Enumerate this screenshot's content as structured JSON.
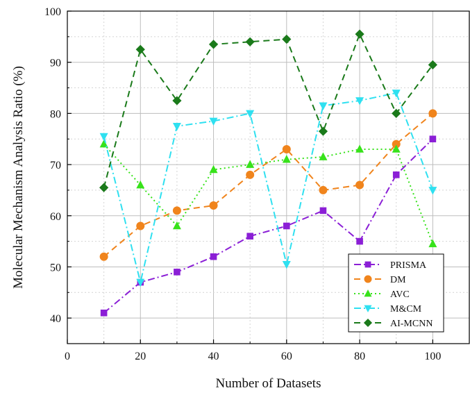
{
  "chart_data": {
    "type": "line",
    "xlabel": "Number of Datasets",
    "ylabel": "Molecular Mechanism Analysis Ratio (%)",
    "xlim": [
      0,
      110
    ],
    "ylim": [
      35,
      100
    ],
    "xticks": [
      0,
      20,
      40,
      60,
      80,
      100
    ],
    "yticks": [
      40,
      50,
      60,
      70,
      80,
      90,
      100
    ],
    "xtick_labels": [
      "0",
      "20",
      "40",
      "60",
      "80",
      "100"
    ],
    "ytick_labels": [
      "40",
      "50",
      "60",
      "70",
      "80",
      "90",
      "100"
    ],
    "grid": true,
    "legend_position": "bottom-right",
    "x": [
      10,
      20,
      30,
      40,
      50,
      60,
      70,
      80,
      90,
      100
    ],
    "series": [
      {
        "name": "PRISMA",
        "color": "#8b1fd6",
        "marker": "square",
        "dash": "dashdot",
        "values": [
          41,
          47,
          49,
          52,
          56,
          58,
          61,
          55,
          68,
          75
        ]
      },
      {
        "name": "DM",
        "color": "#f0841c",
        "marker": "circle",
        "dash": "dash",
        "values": [
          52,
          58,
          61,
          62,
          68,
          73,
          65,
          66,
          74,
          80
        ]
      },
      {
        "name": "AVC",
        "color": "#37e21a",
        "marker": "triangle-up",
        "dash": "dot",
        "values": [
          74,
          66,
          58,
          69,
          70,
          71,
          71.5,
          73,
          73,
          54.5
        ]
      },
      {
        "name": "M&CM",
        "color": "#2fe0f0",
        "marker": "triangle-down",
        "dash": "dashdot",
        "values": [
          75.5,
          47,
          77.5,
          78.5,
          80,
          50.5,
          81.5,
          82.5,
          84,
          65
        ]
      },
      {
        "name": "AI-MCNN",
        "color": "#1a7a1a",
        "marker": "diamond",
        "dash": "dash",
        "values": [
          65.5,
          92.5,
          82.5,
          93.5,
          94,
          94.5,
          76.5,
          95.5,
          80,
          89.5
        ]
      }
    ]
  }
}
